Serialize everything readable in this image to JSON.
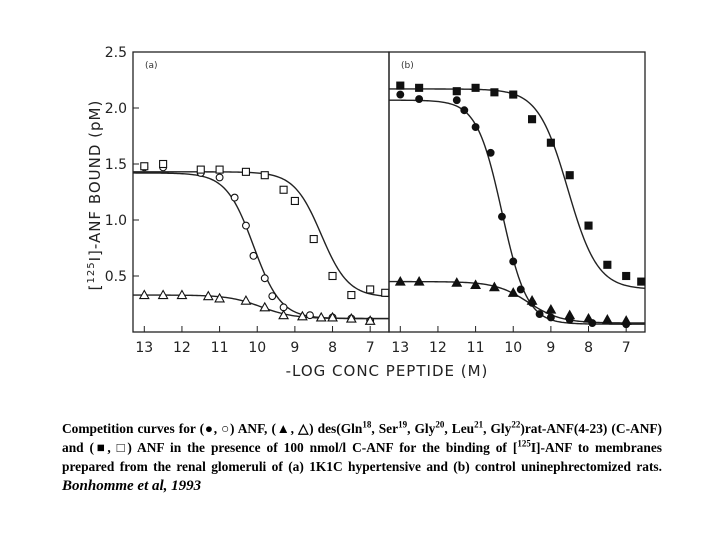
{
  "chart_data": {
    "type": "scatter",
    "ylabel_parts": {
      "open": "[",
      "sup": "125",
      "rest": "I]-ANF BOUND (pM)"
    },
    "xlabel": "-LOG CONC PEPTIDE (M)",
    "ylim": [
      0,
      2.5
    ],
    "yticks": [
      0.5,
      1.0,
      1.5,
      2.0,
      2.5
    ],
    "ytick_labels": [
      "0.5",
      "1.0",
      "1.5",
      "2.0",
      "2.5"
    ],
    "xlim": [
      13.3,
      6.5
    ],
    "xticks": [
      13,
      12,
      11,
      10,
      9,
      8,
      7
    ],
    "xtick_labels": [
      "13",
      "12",
      "11",
      "10",
      "9",
      "8",
      "7"
    ],
    "panels": [
      {
        "label": "(a)",
        "series": [
          {
            "marker": "open-circle",
            "x": [
              13,
              12.5,
              11.5,
              11,
              10.6,
              10.3,
              10.1,
              9.8,
              9.6,
              9.3,
              8.6,
              8,
              7.5,
              7
            ],
            "y": [
              1.47,
              1.47,
              1.42,
              1.38,
              1.2,
              0.95,
              0.68,
              0.48,
              0.32,
              0.22,
              0.15,
              0.13,
              0.12,
              0.1
            ]
          },
          {
            "marker": "open-square",
            "x": [
              13,
              12.5,
              11.5,
              11,
              10.3,
              9.8,
              9.3,
              9,
              8.5,
              8,
              7.5,
              7,
              6.6
            ],
            "y": [
              1.48,
              1.5,
              1.45,
              1.45,
              1.43,
              1.4,
              1.27,
              1.17,
              0.83,
              0.5,
              0.33,
              0.38,
              0.35
            ]
          },
          {
            "marker": "open-triangle",
            "x": [
              13,
              12.5,
              12,
              11.3,
              11,
              10.3,
              9.8,
              9.3,
              8.8,
              8.3,
              8,
              7.5,
              7
            ],
            "y": [
              0.33,
              0.33,
              0.33,
              0.32,
              0.3,
              0.28,
              0.22,
              0.15,
              0.14,
              0.13,
              0.13,
              0.12,
              0.1
            ]
          }
        ],
        "curves": [
          {
            "top": 1.42,
            "bottom": 0.12,
            "ic50": 10.1,
            "slope": 1.2
          },
          {
            "top": 1.43,
            "bottom": 0.31,
            "ic50": 8.3,
            "slope": 1.2
          },
          {
            "top": 0.33,
            "bottom": 0.12,
            "ic50": 9.9,
            "slope": 1.0
          }
        ]
      },
      {
        "label": "(b)",
        "series": [
          {
            "marker": "filled-circle",
            "x": [
              13,
              12.5,
              11.5,
              11.3,
              11,
              10.6,
              10.3,
              10,
              9.8,
              9.5,
              9.3,
              9,
              8.5,
              7.9,
              7
            ],
            "y": [
              2.12,
              2.08,
              2.07,
              1.98,
              1.83,
              1.6,
              1.03,
              0.63,
              0.38,
              0.26,
              0.16,
              0.13,
              0.11,
              0.08,
              0.07
            ]
          },
          {
            "marker": "filled-square",
            "x": [
              13,
              12.5,
              11.5,
              11,
              10.5,
              10,
              9.5,
              9,
              8.5,
              8,
              7.5,
              7,
              6.6
            ],
            "y": [
              2.2,
              2.18,
              2.15,
              2.18,
              2.14,
              2.12,
              1.9,
              1.69,
              1.4,
              0.95,
              0.6,
              0.5,
              0.45
            ]
          },
          {
            "marker": "filled-triangle",
            "x": [
              13,
              12.5,
              11.5,
              11,
              10.5,
              10,
              9.5,
              9,
              8.5,
              8,
              7.5,
              7
            ],
            "y": [
              0.45,
              0.45,
              0.44,
              0.42,
              0.4,
              0.35,
              0.28,
              0.2,
              0.15,
              0.12,
              0.11,
              0.1
            ]
          }
        ],
        "curves": [
          {
            "top": 2.07,
            "bottom": 0.07,
            "ic50": 10.3,
            "slope": 1.3
          },
          {
            "top": 2.17,
            "bottom": 0.38,
            "ic50": 8.55,
            "slope": 1.1
          },
          {
            "top": 0.45,
            "bottom": 0.08,
            "ic50": 9.6,
            "slope": 1.0
          }
        ]
      }
    ]
  },
  "caption": {
    "l1": "Competition curves for (",
    "l2": ", ",
    "l3": ") ANF, (",
    "l4": ", ",
    "l5": ") des(Gln",
    "s1": "18",
    "l6": ", Ser",
    "s2": "19",
    "l7": ", Gly",
    "s3": "20",
    "l8": ", Leu",
    "s4": "21",
    "l9": ", Gly",
    "s5": "22",
    "l10": ")rat-ANF(4-23) (C-ANF) and (",
    "l11": ", ",
    "l12": ") ANF in the presence of 100 nmol/l C-ANF for the binding of [",
    "s6": "125",
    "l13": "I]-ANF to membranes prepared from the renal glomeruli of (a) 1K1C hypertensive and (b) control uninephrectomized rats.",
    "cite": "Bonhomme et al, 1993"
  }
}
